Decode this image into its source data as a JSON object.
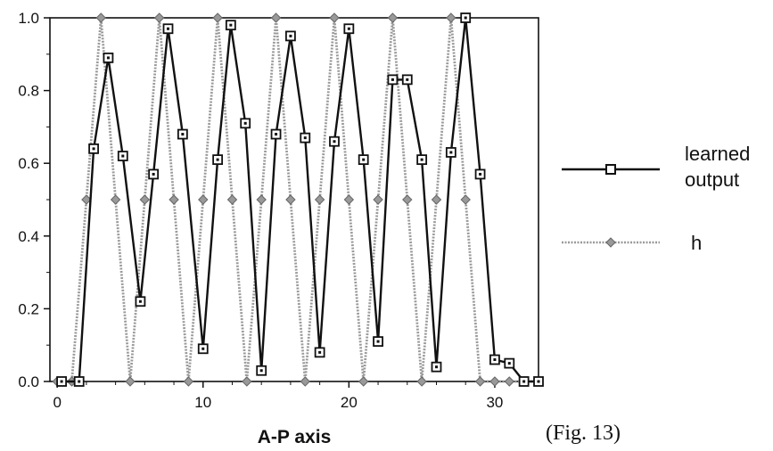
{
  "chart_data": {
    "type": "line",
    "xlabel": "A-P axis",
    "ylabel": "",
    "xlim": [
      -0.5,
      33
    ],
    "ylim": [
      0,
      1
    ],
    "x_ticks": [
      "0",
      "10",
      "20",
      "30"
    ],
    "y_ticks": [
      "0.0",
      "0.2",
      "0.4",
      "0.6",
      "0.8",
      "1.0"
    ],
    "grid": false,
    "legend_position": "right",
    "series": [
      {
        "name": "learned output",
        "color": "#111111",
        "marker": "square",
        "x": [
          0.3,
          1.5,
          2.5,
          3.5,
          4.5,
          5.7,
          6.6,
          7.6,
          8.6,
          10.0,
          11.0,
          11.9,
          12.9,
          14.0,
          15.0,
          16.0,
          17.0,
          18.0,
          19.0,
          20.0,
          21.0,
          22.0,
          23.0,
          24.0,
          25.0,
          26.0,
          27.0,
          28.0,
          29.0,
          30.0,
          31.0,
          32.0,
          33.0
        ],
        "y": [
          0.0,
          0.0,
          0.64,
          0.89,
          0.62,
          0.22,
          0.57,
          0.97,
          0.68,
          0.09,
          0.61,
          0.98,
          0.71,
          0.03,
          0.68,
          0.95,
          0.67,
          0.08,
          0.66,
          0.97,
          0.61,
          0.11,
          0.83,
          0.83,
          0.61,
          0.04,
          0.63,
          1.0,
          0.57,
          0.06,
          0.05,
          0.0,
          0.0
        ]
      },
      {
        "name": "h",
        "color": "#9a9a9a",
        "marker": "diamond",
        "x": [
          0,
          1,
          2,
          3,
          4,
          5,
          6,
          7,
          8,
          9,
          10,
          11,
          12,
          13,
          14,
          15,
          16,
          17,
          18,
          19,
          20,
          21,
          22,
          23,
          24,
          25,
          26,
          27,
          28,
          29,
          30,
          31,
          32,
          33
        ],
        "y": [
          0,
          0,
          0.5,
          1,
          0.5,
          0,
          0.5,
          1,
          0.5,
          0,
          0.5,
          1,
          0.5,
          0,
          0.5,
          1,
          0.5,
          0,
          0.5,
          1,
          0.5,
          0,
          0.5,
          1,
          0.5,
          0,
          0.5,
          1,
          0.5,
          0,
          0,
          0,
          0,
          0
        ]
      }
    ]
  },
  "legend": {
    "items": [
      {
        "label_lines": [
          "learned",
          "output"
        ]
      },
      {
        "label_lines": [
          "h"
        ]
      }
    ]
  },
  "figure_label": "(Fig. 13)"
}
